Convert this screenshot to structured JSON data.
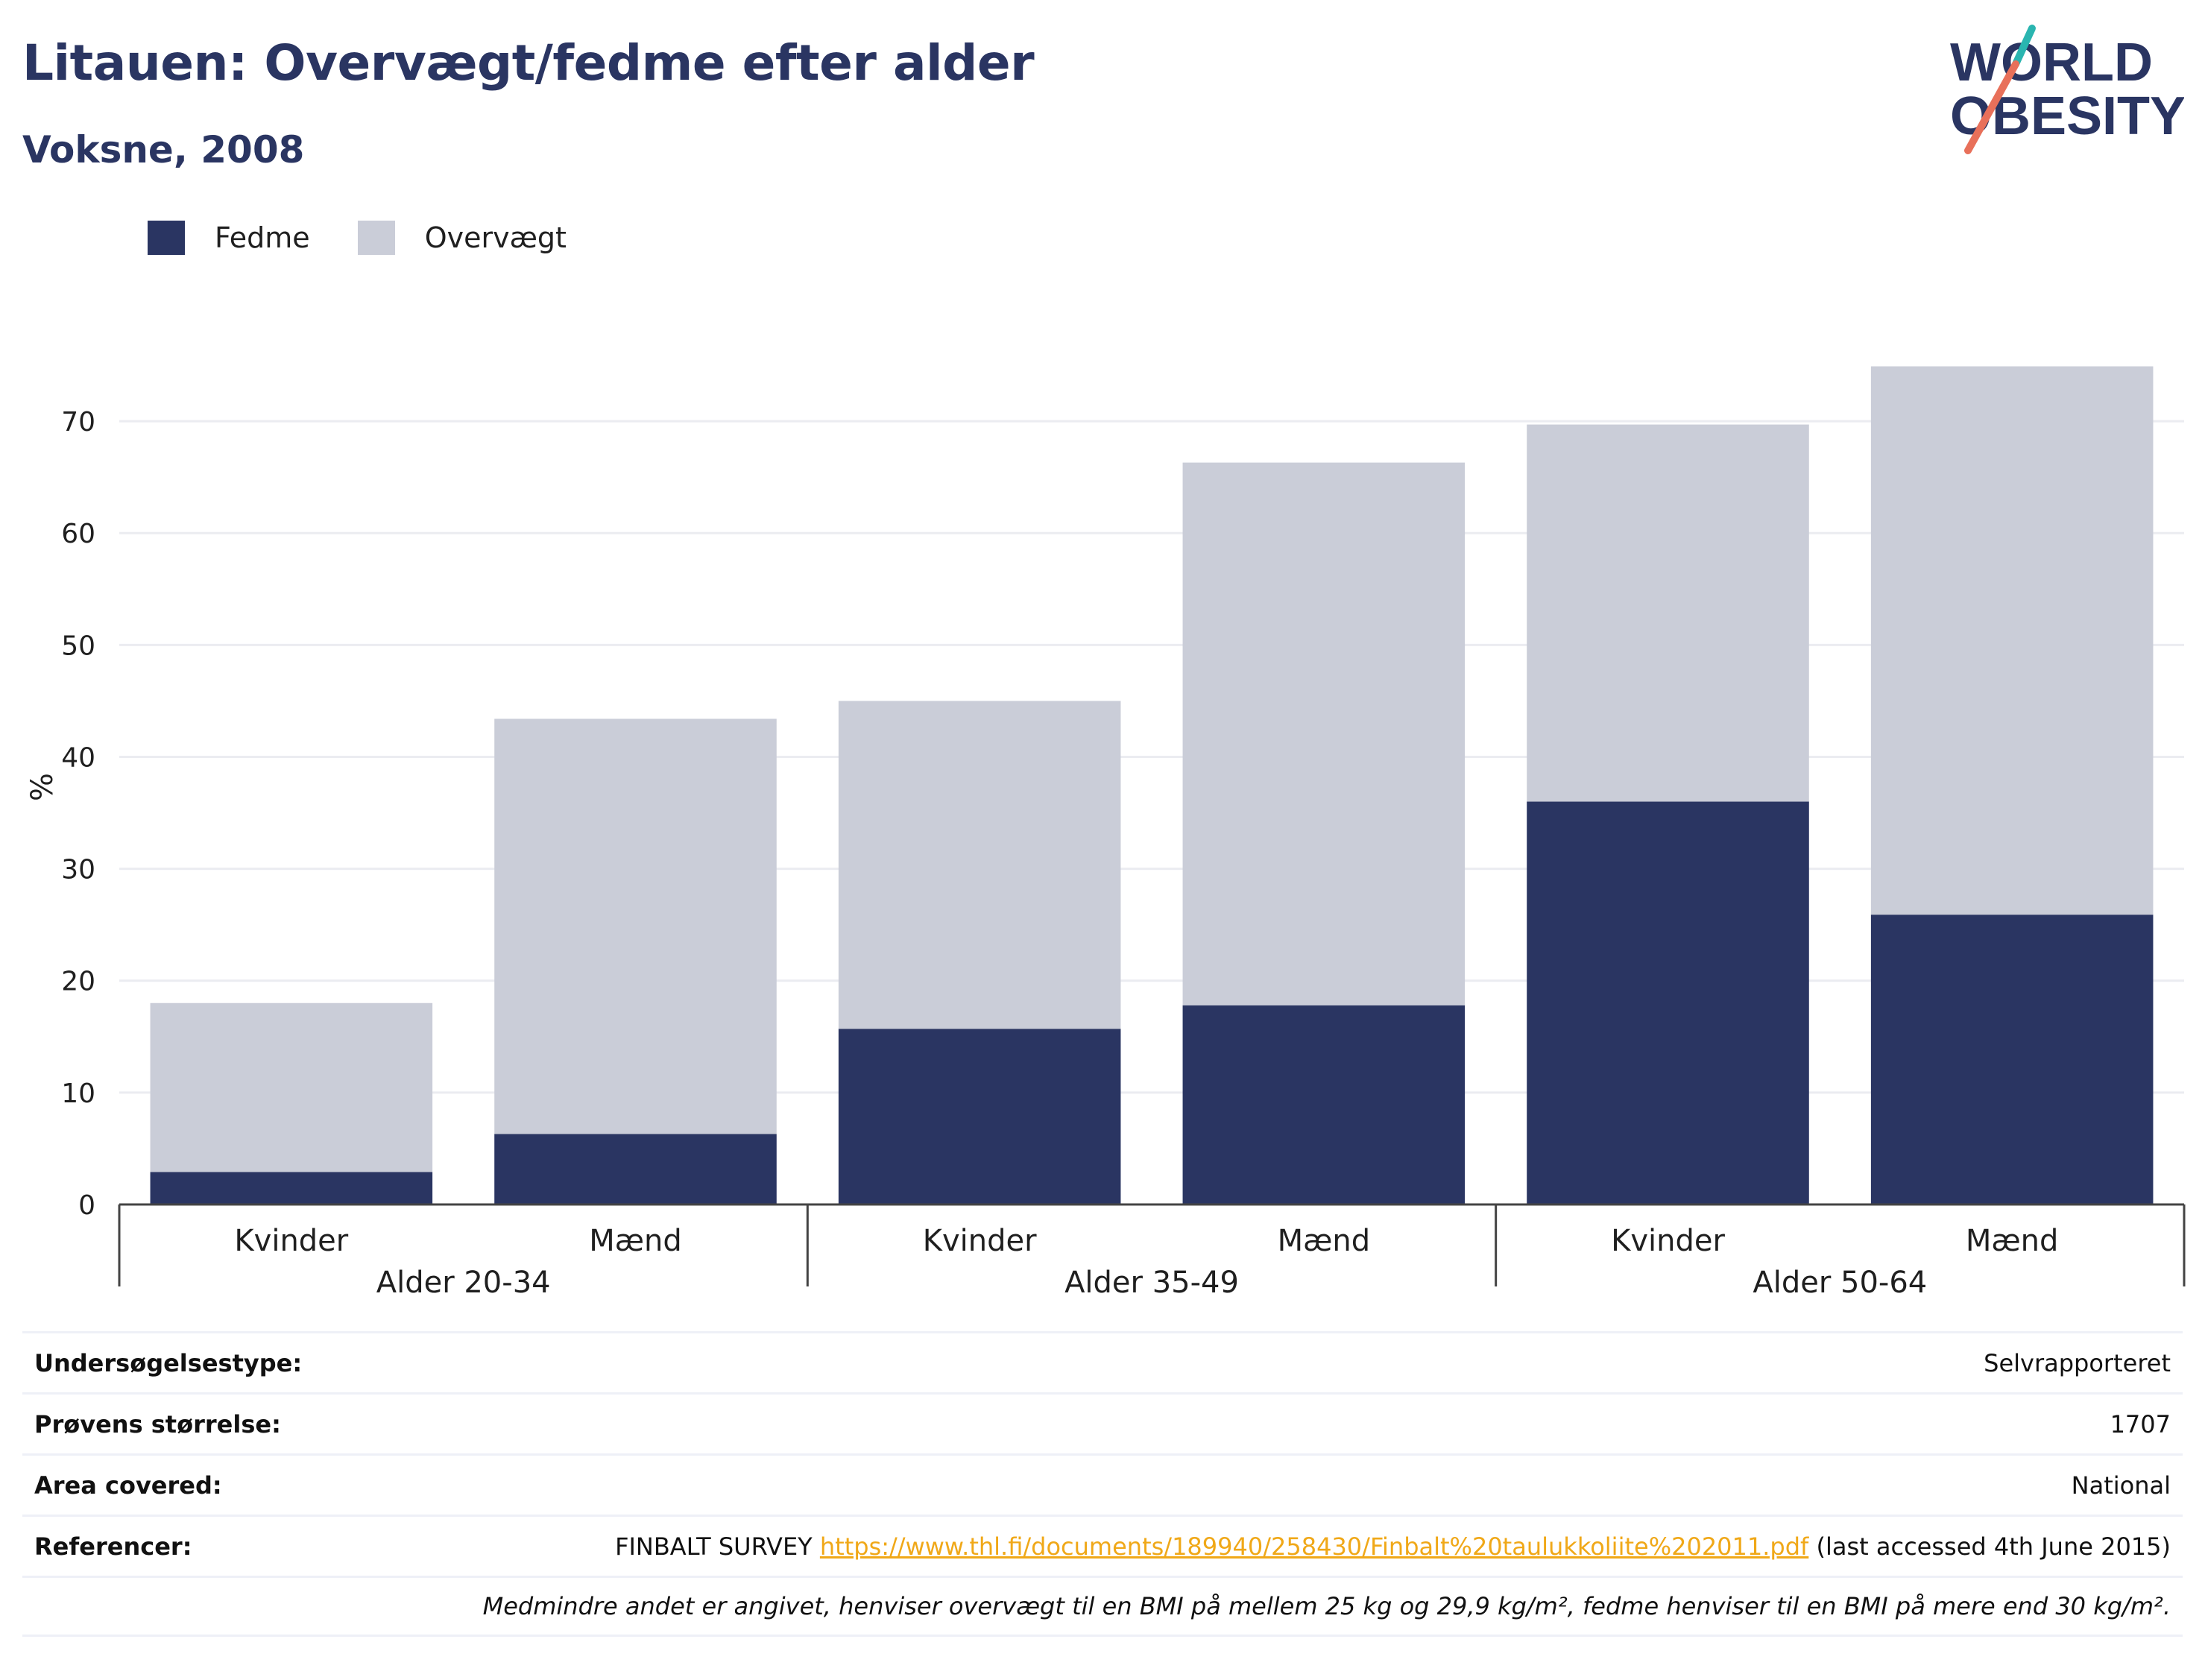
{
  "header": {
    "title": "Litauen: Overvægt/fedme efter alder",
    "subtitle": "Voksne, 2008"
  },
  "logo": {
    "line1": "WORLD",
    "line2": "OBESITY",
    "colors": {
      "text": "#2a3562",
      "slash_teal": "#2ab5b0",
      "slash_coral": "#e8705a"
    }
  },
  "legend": [
    {
      "label": "Fedme",
      "color": "#2a3562"
    },
    {
      "label": "Overvægt",
      "color": "#cacdd8"
    }
  ],
  "chart_data": {
    "type": "bar",
    "stacked": true,
    "ylabel": "%",
    "ylim": [
      0,
      75
    ],
    "yticks": [
      0,
      10,
      20,
      30,
      40,
      50,
      60,
      70
    ],
    "grid": true,
    "legend_position": "top-left",
    "groups": [
      {
        "label": "Alder 20-34",
        "categories": [
          "Kvinder",
          "Mænd"
        ]
      },
      {
        "label": "Alder 35-49",
        "categories": [
          "Kvinder",
          "Mænd"
        ]
      },
      {
        "label": "Alder 50-64",
        "categories": [
          "Kvinder",
          "Mænd"
        ]
      }
    ],
    "categories": [
      "Kvinder",
      "Mænd",
      "Kvinder",
      "Mænd",
      "Kvinder",
      "Mænd"
    ],
    "series": [
      {
        "name": "Fedme",
        "color": "#2a3562",
        "values": [
          2.9,
          6.3,
          15.7,
          17.8,
          36.0,
          25.9
        ]
      },
      {
        "name": "Overvægt",
        "color": "#cacdd8",
        "values": [
          15.1,
          37.1,
          29.3,
          48.5,
          33.7,
          49.0
        ]
      }
    ]
  },
  "meta": {
    "survey_type": {
      "label": "Undersøgelsestype:",
      "value": "Selvrapporteret"
    },
    "sample_size": {
      "label": "Prøvens størrelse:",
      "value": "1707"
    },
    "area": {
      "label": "Area covered:",
      "value": "National"
    },
    "references": {
      "label": "Referencer:",
      "prefix": "FINBALT SURVEY ",
      "link": "https://www.thl.fi/documents/189940/258430/Finbalt%20taulukkoliite%202011.pdf",
      "suffix": " (last accessed 4th June 2015)"
    },
    "note": "Medmindre andet er angivet, henviser overvægt til en BMI på mellem 25 kg og 29,9 kg/m², fedme henviser til en BMI på mere end 30 kg/m²."
  }
}
